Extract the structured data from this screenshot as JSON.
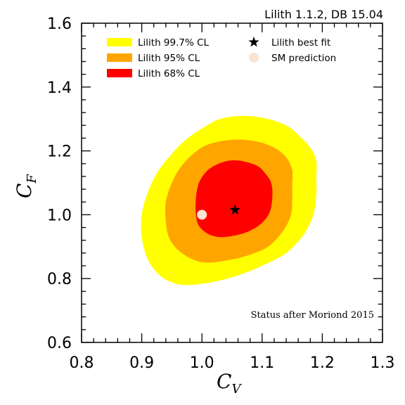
{
  "chart_data": {
    "type": "contour",
    "header": "Lilith 1.1.2, DB 15.04",
    "annotation": "Status after Moriond 2015",
    "xlabel": {
      "main": "C",
      "sub": "V"
    },
    "ylabel": {
      "main": "C",
      "sub": "F"
    },
    "xlim": [
      0.8,
      1.3
    ],
    "ylim": [
      0.6,
      1.6
    ],
    "x_ticks": [
      "0.8",
      "0.9",
      "1.0",
      "1.1",
      "1.2",
      "1.3"
    ],
    "y_ticks": [
      "0.6",
      "0.8",
      "1.0",
      "1.2",
      "1.4",
      "1.6"
    ],
    "grid": false,
    "legend_position": "top",
    "regions": [
      {
        "name": "Lilith 99.7% CL",
        "color": "#ffff00",
        "boundary": [
          [
            1.19,
            1.11
          ],
          [
            1.19,
            1.17
          ],
          [
            1.18,
            1.21
          ],
          [
            1.16,
            1.25
          ],
          [
            1.14,
            1.28
          ],
          [
            1.11,
            1.3
          ],
          [
            1.07,
            1.31
          ],
          [
            1.03,
            1.3
          ],
          [
            1.0,
            1.27
          ],
          [
            0.97,
            1.23
          ],
          [
            0.945,
            1.18
          ],
          [
            0.925,
            1.13
          ],
          [
            0.91,
            1.07
          ],
          [
            0.9,
            1.0
          ],
          [
            0.9,
            0.93
          ],
          [
            0.91,
            0.86
          ],
          [
            0.93,
            0.81
          ],
          [
            0.955,
            0.785
          ],
          [
            0.98,
            0.78
          ],
          [
            1.02,
            0.79
          ],
          [
            1.06,
            0.81
          ],
          [
            1.1,
            0.84
          ],
          [
            1.14,
            0.88
          ],
          [
            1.17,
            0.94
          ],
          [
            1.185,
            1.0
          ],
          [
            1.19,
            1.06
          ]
        ]
      },
      {
        "name": "Lilith 95% CL",
        "color": "#ffa500",
        "boundary": [
          [
            1.15,
            1.09
          ],
          [
            1.15,
            1.14
          ],
          [
            1.14,
            1.18
          ],
          [
            1.12,
            1.21
          ],
          [
            1.09,
            1.23
          ],
          [
            1.05,
            1.235
          ],
          [
            1.01,
            1.22
          ],
          [
            0.985,
            1.19
          ],
          [
            0.965,
            1.15
          ],
          [
            0.95,
            1.1
          ],
          [
            0.94,
            1.04
          ],
          [
            0.94,
            0.98
          ],
          [
            0.945,
            0.93
          ],
          [
            0.96,
            0.89
          ],
          [
            0.985,
            0.86
          ],
          [
            1.01,
            0.85
          ],
          [
            1.05,
            0.86
          ],
          [
            1.08,
            0.875
          ],
          [
            1.11,
            0.9
          ],
          [
            1.135,
            0.95
          ],
          [
            1.148,
            1.0
          ],
          [
            1.15,
            1.05
          ]
        ]
      },
      {
        "name": "Lilith 68% CL",
        "color": "#ff0000",
        "boundary": [
          [
            1.117,
            1.06
          ],
          [
            1.115,
            1.1
          ],
          [
            1.105,
            1.13
          ],
          [
            1.09,
            1.155
          ],
          [
            1.06,
            1.17
          ],
          [
            1.035,
            1.165
          ],
          [
            1.01,
            1.14
          ],
          [
            0.995,
            1.1
          ],
          [
            0.99,
            1.05
          ],
          [
            0.99,
            1.0
          ],
          [
            0.995,
            0.965
          ],
          [
            1.01,
            0.94
          ],
          [
            1.03,
            0.93
          ],
          [
            1.055,
            0.935
          ],
          [
            1.08,
            0.95
          ],
          [
            1.1,
            0.975
          ],
          [
            1.113,
            1.01
          ]
        ]
      }
    ],
    "points": [
      {
        "name": "Lilith best fit",
        "x": 1.055,
        "y": 1.015,
        "marker": "star",
        "color": "#000000"
      },
      {
        "name": "SM prediction",
        "x": 1.0,
        "y": 1.0,
        "marker": "circle",
        "color": "#fbe4d0"
      }
    ]
  }
}
